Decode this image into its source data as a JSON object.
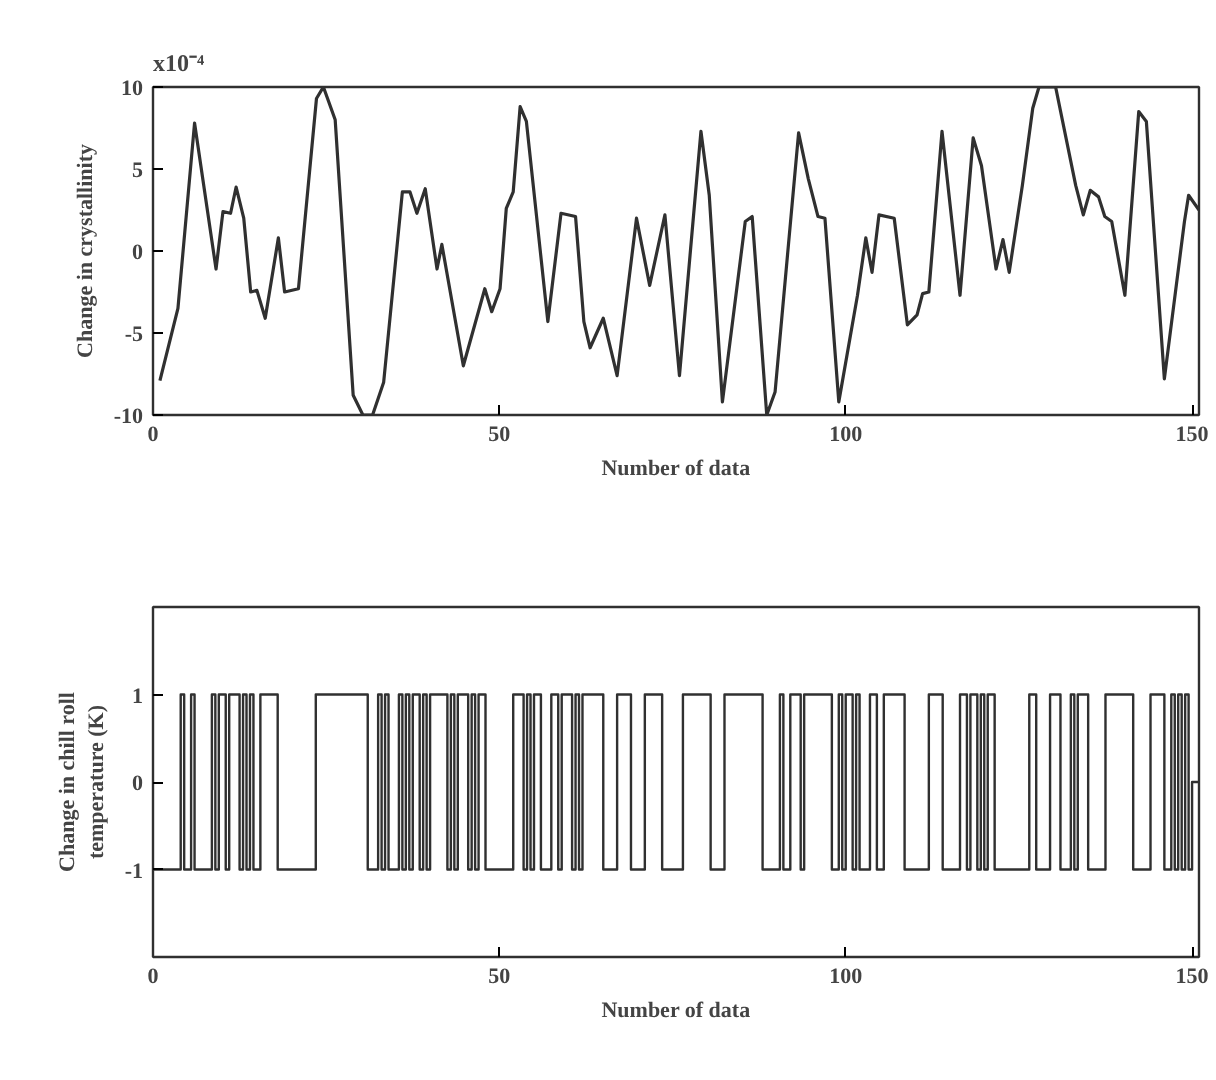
{
  "chart_data": [
    {
      "type": "line",
      "xlabel": "Number of data",
      "ylabel": "Change in crystallinity",
      "annotations": [
        "x10⁻⁴"
      ],
      "x": [
        1,
        3.6,
        6,
        9.1,
        10.1,
        11.2,
        12,
        13.1,
        14.1,
        15,
        16.2,
        18.1,
        19,
        21,
        23.6,
        24.6,
        26.3,
        28.9,
        30.3,
        31.7,
        33.3,
        36,
        37.1,
        38.1,
        39.3,
        41,
        41.7,
        44.8,
        47.9,
        48.9,
        50.1,
        51,
        52,
        53,
        53.9,
        57,
        58.9,
        61,
        62.2,
        63.1,
        65,
        67,
        69.8,
        71.7,
        73.9,
        76,
        79.1,
        80.3,
        82.2,
        85.5,
        86.5,
        88.6,
        89.8,
        93.2,
        94.6,
        96,
        97,
        99,
        101.7,
        102.9,
        103.8,
        104.8,
        107,
        108.9,
        110.3,
        111.1,
        112,
        113.9,
        116.5,
        118.4,
        119.6,
        121.7,
        122.7,
        123.6,
        125.5,
        127,
        127.9,
        130.3,
        133.2,
        134.3,
        135.3,
        136.5,
        137.4,
        138.4,
        140.3,
        142.3,
        143.4,
        146,
        148.9,
        149.5,
        151
      ],
      "values": [
        -7.9,
        -3.5,
        7.8,
        -1.1,
        2.4,
        2.3,
        3.9,
        2,
        -2.5,
        -2.4,
        -4.1,
        0.8,
        -2.5,
        -2.3,
        9.3,
        10,
        8,
        -8.8,
        -10,
        -10,
        -8,
        3.6,
        3.6,
        2.3,
        3.8,
        -1.1,
        0.4,
        -7,
        -2.3,
        -3.7,
        -2.3,
        2.6,
        3.6,
        8.8,
        7.9,
        -4.3,
        2.3,
        2.1,
        -4.3,
        -5.9,
        -4.1,
        -7.6,
        2,
        -2.1,
        2.2,
        -7.6,
        7.3,
        3.4,
        -9.2,
        1.8,
        2.1,
        -10,
        -8.6,
        7.2,
        4.4,
        2.1,
        2,
        -9.2,
        -2.7,
        0.8,
        -1.3,
        2.2,
        2,
        -4.5,
        -3.9,
        -2.6,
        -2.5,
        7.3,
        -2.7,
        6.9,
        5.2,
        -1.1,
        0.7,
        -1.3,
        4,
        8.7,
        10,
        10,
        4,
        2.2,
        3.7,
        3.3,
        2.1,
        1.8,
        -2.7,
        8.5,
        7.9,
        -7.8,
        1.8,
        3.4,
        2.5
      ],
      "color": "#303030",
      "xlim": [
        0,
        151
      ],
      "ylim": [
        -10,
        10
      ],
      "xticks": [
        0,
        50,
        100,
        150
      ],
      "yticks": [
        -10,
        -5,
        0,
        5,
        10
      ],
      "grid": false
    },
    {
      "type": "step",
      "xlabel": "Number of data",
      "ylabel": "Change in chill roll temperature (K)",
      "x": [
        0,
        4,
        4.5,
        5.5,
        6,
        8.5,
        9,
        9.5,
        10.5,
        11,
        12.5,
        13,
        13.5,
        14,
        14.5,
        15.5,
        18,
        23.5,
        31,
        32.5,
        33,
        33.5,
        34,
        35.5,
        36,
        36.5,
        37,
        37.5,
        38.5,
        39,
        39.5,
        40,
        42.5,
        43,
        43.5,
        44,
        45.5,
        46,
        46.5,
        47,
        48,
        52,
        53.5,
        54,
        54.5,
        55,
        56,
        57.5,
        58.5,
        59,
        60.5,
        61,
        61.5,
        62,
        65,
        67,
        69,
        71,
        73.5,
        76.5,
        80.5,
        82.5,
        88,
        90.5,
        91,
        92,
        93.5,
        94,
        98,
        99,
        99.5,
        100,
        101,
        101.5,
        102,
        103.5,
        104.5,
        105.5,
        108.5,
        112,
        114,
        116.5,
        117.5,
        118,
        119,
        119.5,
        120,
        120.5,
        121.5,
        126.5,
        127.5,
        129.5,
        131,
        132.5,
        133,
        133.5,
        135,
        137.5,
        141.5,
        144,
        146,
        147,
        147.5,
        148,
        148.5,
        149,
        149.5,
        150,
        151
      ],
      "values": [
        -1,
        1,
        -1,
        1,
        -1,
        1,
        -1,
        1,
        -1,
        1,
        -1,
        1,
        -1,
        1,
        -1,
        1,
        -1,
        1,
        -1,
        1,
        -1,
        1,
        -1,
        1,
        -1,
        1,
        -1,
        1,
        -1,
        1,
        -1,
        1,
        -1,
        1,
        -1,
        1,
        -1,
        1,
        -1,
        1,
        -1,
        1,
        -1,
        1,
        -1,
        1,
        -1,
        1,
        -1,
        1,
        -1,
        1,
        -1,
        1,
        -1,
        1,
        -1,
        1,
        -1,
        1,
        -1,
        1,
        -1,
        1,
        -1,
        1,
        -1,
        1,
        -1,
        1,
        -1,
        1,
        -1,
        1,
        -1,
        1,
        -1,
        1,
        -1,
        1,
        -1,
        1,
        -1,
        1,
        -1,
        1,
        -1,
        1,
        -1,
        1,
        -1,
        1,
        -1,
        1,
        -1,
        1,
        -1,
        1,
        -1,
        1,
        -1,
        1,
        -1,
        1,
        -1,
        1,
        -1,
        0,
        0
      ],
      "color": "#303030",
      "xlim": [
        0,
        151
      ],
      "ylim": [
        -2,
        2
      ],
      "xticks": [
        0,
        50,
        100,
        150
      ],
      "yticks": [
        -1,
        0,
        1
      ],
      "grid": false
    }
  ]
}
